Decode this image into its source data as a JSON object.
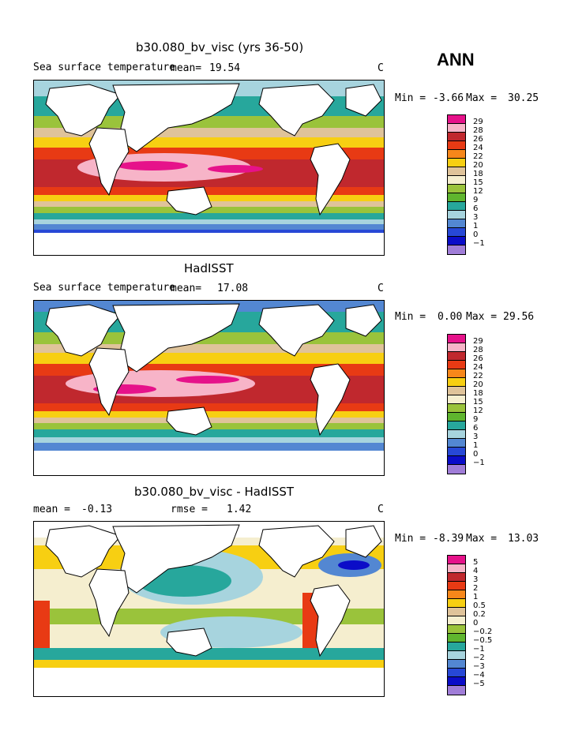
{
  "season": "ANN",
  "colors": {
    "ocean_scale": [
      "#e6128a",
      "#f7b4c8",
      "#c0282e",
      "#e83a14",
      "#f7871a",
      "#f7cf12",
      "#dfc39a",
      "#f5eecf",
      "#9ac33b",
      "#5fb52e",
      "#27a79c",
      "#a7d4de",
      "#5387d2",
      "#2748d6",
      "#0b0cc8",
      "#a07dd8"
    ],
    "land": "#ffffff"
  },
  "panels": [
    {
      "title": "b30.080_bv_visc (yrs 36-50)",
      "left": "Sea surface temperature",
      "mean_label": "mean=",
      "mean_value": "19.54",
      "unit": "C",
      "min_label": "Min =",
      "min_value": "-3.66",
      "max_label": "Max =",
      "max_value": "30.25",
      "levels": [
        "29",
        "28",
        "26",
        "24",
        "22",
        "20",
        "18",
        "15",
        "12",
        "9",
        "6",
        "3",
        "1",
        "0",
        "−1"
      ]
    },
    {
      "title": "HadISST",
      "left": "Sea surface temperature",
      "mean_label": "mean=",
      "mean_value": "17.08",
      "unit": "C",
      "min_label": "Min =",
      "min_value": "0.00",
      "max_label": "Max =",
      "max_value": "29.56",
      "levels": [
        "29",
        "28",
        "26",
        "24",
        "22",
        "20",
        "18",
        "15",
        "12",
        "9",
        "6",
        "3",
        "1",
        "0",
        "−1"
      ]
    },
    {
      "title": "b30.080_bv_visc - HadISST",
      "left": "mean =",
      "mean_value": "-0.13",
      "rmse_label": "rmse =",
      "rmse_value": "1.42",
      "unit": "C",
      "min_label": "Min =",
      "min_value": "-8.39",
      "max_label": "Max =",
      "max_value": "13.03",
      "levels": [
        "5",
        "4",
        "3",
        "2",
        "1",
        "0.5",
        "0.2",
        "0",
        "−0.2",
        "−0.5",
        "−1",
        "−2",
        "−3",
        "−4",
        "−5"
      ]
    }
  ]
}
